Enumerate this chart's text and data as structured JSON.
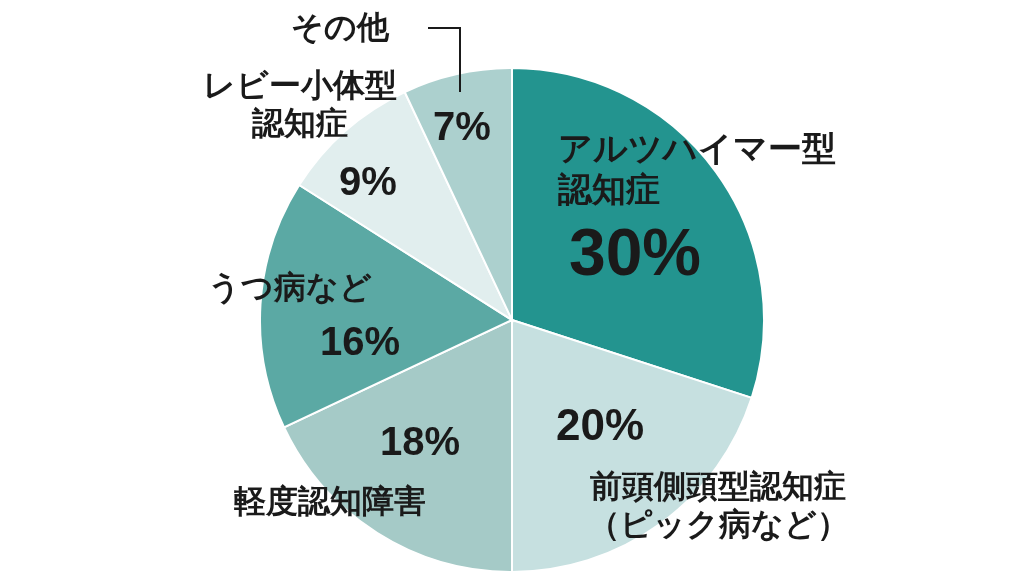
{
  "chart_data": {
    "type": "pie",
    "categories": [
      "アルツハイマー型認知症",
      "前頭側頭型認知症（ピック病など）",
      "軽度認知障害",
      "うつ病など",
      "レビー小体型認知症",
      "その他"
    ],
    "values": [
      30,
      20,
      18,
      16,
      9,
      7
    ],
    "value_labels": [
      "30%",
      "20%",
      "18%",
      "16%",
      "9%",
      "7%"
    ],
    "colors": [
      "#23948f",
      "#c6e0e0",
      "#a5cac7",
      "#5ba9a4",
      "#e1eeee",
      "#acd0ce"
    ]
  }
}
